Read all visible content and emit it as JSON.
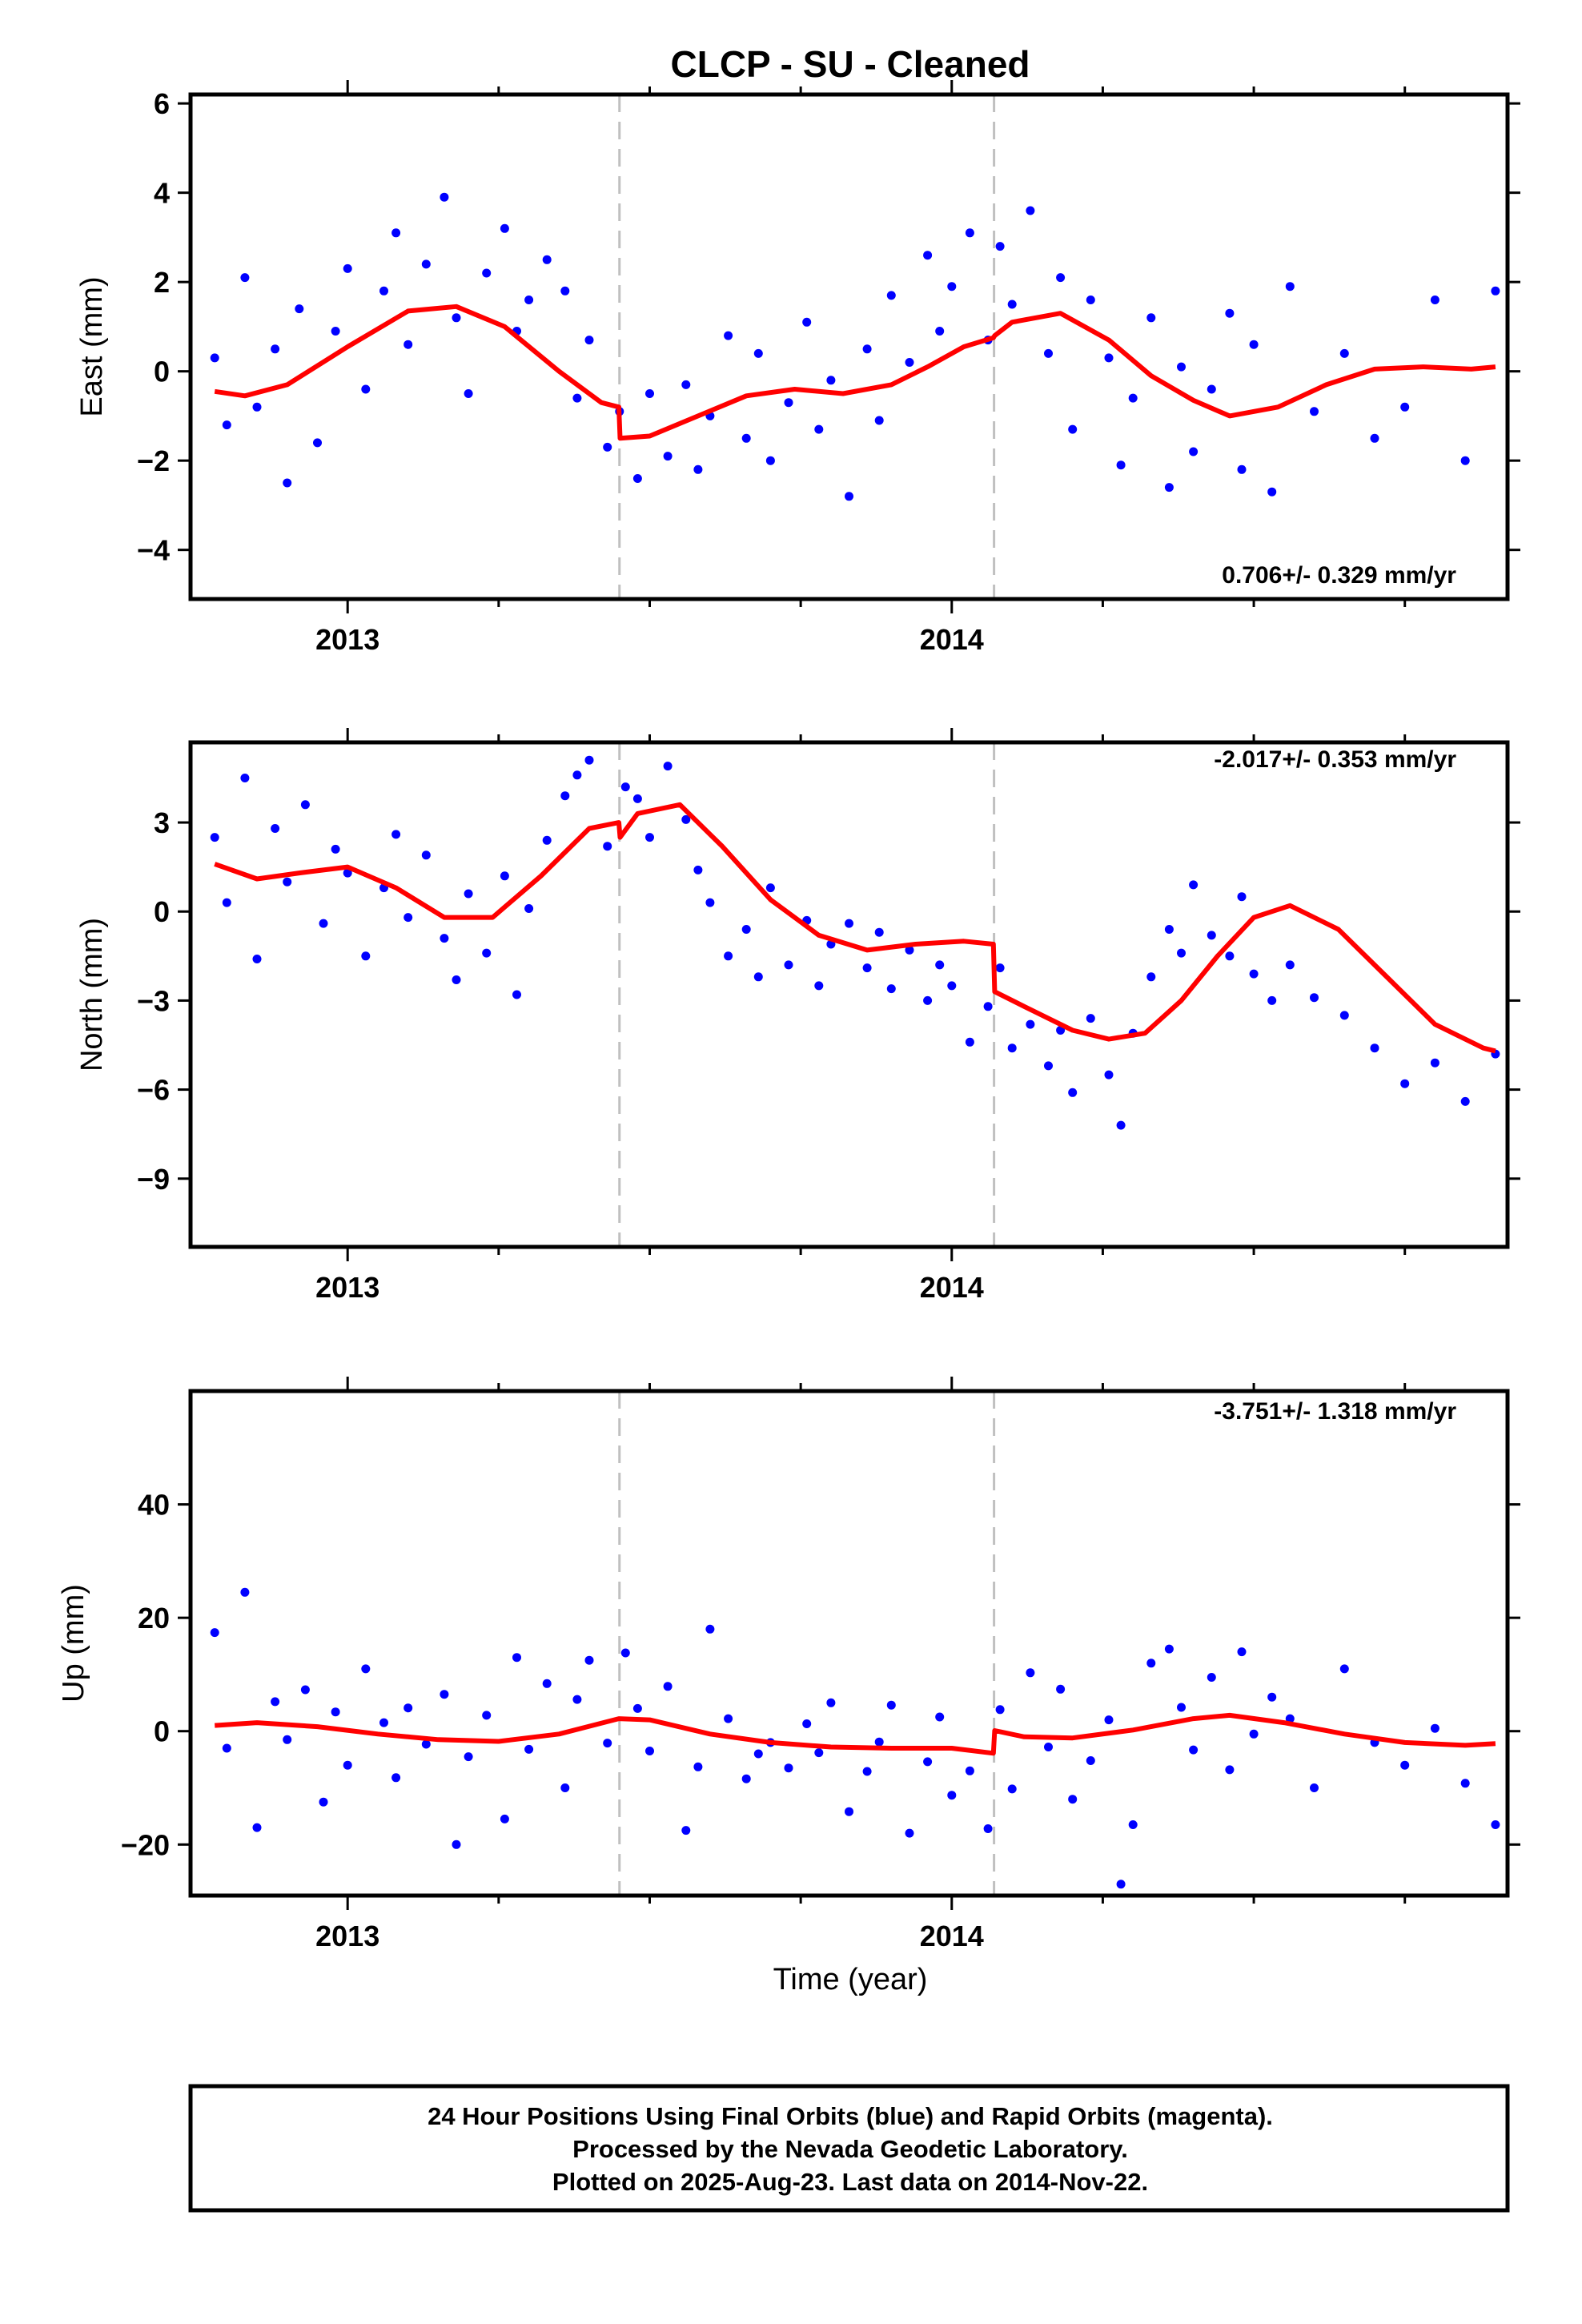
{
  "title": "CLCP  - SU - Cleaned",
  "xlabel": "Time (year)",
  "footer": {
    "line1": "24 Hour Positions Using Final Orbits (blue) and Rapid Orbits (magenta).",
    "line2": "Processed by the Nevada Geodetic Laboratory.",
    "line3": "Plotted on 2025-Aug-23. Last data on 2014-Nov-22."
  },
  "colors": {
    "points": "#0000ff",
    "fit": "#ff0000",
    "breaks": "#c0c0c0",
    "frame": "#000000"
  },
  "chart_data": [
    {
      "type": "scatter",
      "component": "east",
      "ylabel": "East (mm)",
      "rate": "0.706+/- 0.329 mm/yr",
      "xlim": [
        2012.74,
        2014.92
      ],
      "ylim": [
        -5.1,
        6.2
      ],
      "yticks": [
        -4,
        -2,
        0,
        2,
        4,
        6
      ],
      "yticklabels": [
        "−4",
        "−2",
        "0",
        "2",
        "4",
        "6"
      ],
      "xticks": [
        2013,
        2014
      ],
      "xticklabels": [
        "2013",
        "2014"
      ],
      "x_minor_ticks": [
        2013.25,
        2013.5,
        2013.75,
        2014.25,
        2014.5,
        2014.75
      ],
      "breaks": [
        2013.45,
        2014.07
      ],
      "grid": false,
      "series": [
        {
          "kind": "points",
          "x": [
            2012.78,
            2012.8,
            2012.83,
            2012.85,
            2012.88,
            2012.9,
            2012.92,
            2012.95,
            2012.98,
            2013.0,
            2013.03,
            2013.06,
            2013.08,
            2013.1,
            2013.13,
            2013.16,
            2013.18,
            2013.2,
            2013.23,
            2013.26,
            2013.28,
            2013.3,
            2013.33,
            2013.36,
            2013.38,
            2013.4,
            2013.43,
            2013.45,
            2013.48,
            2013.5,
            2013.53,
            2013.56,
            2013.58,
            2013.6,
            2013.63,
            2013.66,
            2013.68,
            2013.7,
            2013.73,
            2013.76,
            2013.78,
            2013.8,
            2013.83,
            2013.86,
            2013.88,
            2013.9,
            2013.93,
            2013.96,
            2013.98,
            2014.0,
            2014.03,
            2014.06,
            2014.08,
            2014.1,
            2014.13,
            2014.16,
            2014.18,
            2014.2,
            2014.23,
            2014.26,
            2014.28,
            2014.3,
            2014.33,
            2014.36,
            2014.38,
            2014.4,
            2014.43,
            2014.46,
            2014.48,
            2014.5,
            2014.53,
            2014.56,
            2014.6,
            2014.65,
            2014.7,
            2014.75,
            2014.8,
            2014.85,
            2014.9
          ],
          "y": [
            0.3,
            -1.2,
            2.1,
            -0.8,
            0.5,
            -2.5,
            1.4,
            -1.6,
            0.9,
            2.3,
            -0.4,
            1.8,
            3.1,
            0.6,
            2.4,
            3.9,
            1.2,
            -0.5,
            2.2,
            3.2,
            0.9,
            1.6,
            2.5,
            1.8,
            -0.6,
            0.7,
            -1.7,
            -0.9,
            -2.4,
            -0.5,
            -1.9,
            -0.3,
            -2.2,
            -1.0,
            0.8,
            -1.5,
            0.4,
            -2.0,
            -0.7,
            1.1,
            -1.3,
            -0.2,
            -2.8,
            0.5,
            -1.1,
            1.7,
            0.2,
            2.6,
            0.9,
            1.9,
            3.1,
            0.7,
            2.8,
            1.5,
            3.6,
            0.4,
            2.1,
            -1.3,
            1.6,
            0.3,
            -2.1,
            -0.6,
            1.2,
            -2.6,
            0.1,
            -1.8,
            -0.4,
            1.3,
            -2.2,
            0.6,
            -2.7,
            1.9,
            -0.9,
            0.4,
            -1.5,
            -0.8,
            1.6,
            -2.0,
            1.8
          ]
        },
        {
          "kind": "fit",
          "x": [
            2012.78,
            2012.83,
            2012.9,
            2013.0,
            2013.1,
            2013.18,
            2013.26,
            2013.35,
            2013.42,
            2013.449,
            2013.451,
            2013.5,
            2013.58,
            2013.66,
            2013.74,
            2013.82,
            2013.9,
            2013.96,
            2014.02,
            2014.069,
            2014.071,
            2014.1,
            2014.18,
            2014.26,
            2014.33,
            2014.4,
            2014.46,
            2014.54,
            2014.62,
            2014.7,
            2014.78,
            2014.86,
            2014.9
          ],
          "y": [
            -0.45,
            -0.55,
            -0.3,
            0.55,
            1.35,
            1.45,
            1.0,
            0.0,
            -0.7,
            -0.8,
            -1.5,
            -1.45,
            -1.0,
            -0.55,
            -0.4,
            -0.5,
            -0.3,
            0.1,
            0.55,
            0.75,
            0.8,
            1.1,
            1.3,
            0.7,
            -0.1,
            -0.65,
            -1.0,
            -0.8,
            -0.3,
            0.05,
            0.1,
            0.05,
            0.1
          ]
        }
      ]
    },
    {
      "type": "scatter",
      "component": "north",
      "ylabel": "North (mm)",
      "rate": "-2.017+/- 0.353 mm/yr",
      "xlim": [
        2012.74,
        2014.92
      ],
      "ylim": [
        -11.3,
        5.7
      ],
      "yticks": [
        -9,
        -6,
        -3,
        0,
        3
      ],
      "yticklabels": [
        "−9",
        "−6",
        "−3",
        "0",
        "3"
      ],
      "xticks": [
        2013,
        2014
      ],
      "xticklabels": [
        "2013",
        "2014"
      ],
      "x_minor_ticks": [
        2013.25,
        2013.5,
        2013.75,
        2014.25,
        2014.5,
        2014.75
      ],
      "breaks": [
        2013.45,
        2014.07
      ],
      "grid": false,
      "series": [
        {
          "kind": "points",
          "x": [
            2012.78,
            2012.8,
            2012.83,
            2012.85,
            2012.88,
            2012.9,
            2012.93,
            2012.96,
            2012.98,
            2013.0,
            2013.03,
            2013.06,
            2013.08,
            2013.1,
            2013.13,
            2013.16,
            2013.18,
            2013.2,
            2013.23,
            2013.26,
            2013.28,
            2013.3,
            2013.33,
            2013.36,
            2013.38,
            2013.4,
            2013.43,
            2013.46,
            2013.48,
            2013.5,
            2013.53,
            2013.56,
            2013.58,
            2013.6,
            2013.63,
            2013.66,
            2013.68,
            2013.7,
            2013.73,
            2013.76,
            2013.78,
            2013.8,
            2013.83,
            2013.86,
            2013.88,
            2013.9,
            2013.93,
            2013.96,
            2013.98,
            2014.0,
            2014.03,
            2014.06,
            2014.08,
            2014.1,
            2014.13,
            2014.16,
            2014.18,
            2014.2,
            2014.23,
            2014.26,
            2014.28,
            2014.3,
            2014.33,
            2014.36,
            2014.38,
            2014.4,
            2014.43,
            2014.46,
            2014.48,
            2014.5,
            2014.53,
            2014.56,
            2014.6,
            2014.65,
            2014.7,
            2014.75,
            2014.8,
            2014.85,
            2014.9
          ],
          "y": [
            2.5,
            0.3,
            4.5,
            -1.6,
            2.8,
            1.0,
            3.6,
            -0.4,
            2.1,
            1.3,
            -1.5,
            0.8,
            2.6,
            -0.2,
            1.9,
            -0.9,
            -2.3,
            0.6,
            -1.4,
            1.2,
            -2.8,
            0.1,
            2.4,
            3.9,
            4.6,
            5.1,
            2.2,
            4.2,
            3.8,
            2.5,
            4.9,
            3.1,
            1.4,
            0.3,
            -1.5,
            -0.6,
            -2.2,
            0.8,
            -1.8,
            -0.3,
            -2.5,
            -1.1,
            -0.4,
            -1.9,
            -0.7,
            -2.6,
            -1.3,
            -3.0,
            -1.8,
            -2.5,
            -4.4,
            -3.2,
            -1.9,
            -4.6,
            -3.8,
            -5.2,
            -4.0,
            -6.1,
            -3.6,
            -5.5,
            -7.2,
            -4.1,
            -2.2,
            -0.6,
            -1.4,
            0.9,
            -0.8,
            -1.5,
            0.5,
            -2.1,
            -3.0,
            -1.8,
            -2.9,
            -3.5,
            -4.6,
            -5.8,
            -5.1,
            -6.4,
            -4.8
          ]
        },
        {
          "kind": "fit",
          "x": [
            2012.78,
            2012.85,
            2012.92,
            2013.0,
            2013.08,
            2013.16,
            2013.24,
            2013.32,
            2013.4,
            2013.449,
            2013.451,
            2013.48,
            2013.55,
            2013.62,
            2013.7,
            2013.78,
            2013.86,
            2013.94,
            2014.02,
            2014.069,
            2014.071,
            2014.12,
            2014.2,
            2014.26,
            2014.32,
            2014.38,
            2014.44,
            2014.5,
            2014.56,
            2014.64,
            2014.72,
            2014.8,
            2014.88,
            2014.9
          ],
          "y": [
            1.6,
            1.1,
            1.3,
            1.5,
            0.8,
            -0.2,
            -0.2,
            1.2,
            2.8,
            3.0,
            2.5,
            3.3,
            3.6,
            2.2,
            0.4,
            -0.8,
            -1.3,
            -1.1,
            -1.0,
            -1.1,
            -2.7,
            -3.2,
            -4.0,
            -4.3,
            -4.1,
            -3.0,
            -1.5,
            -0.2,
            0.2,
            -0.6,
            -2.2,
            -3.8,
            -4.6,
            -4.7
          ]
        }
      ]
    },
    {
      "type": "scatter",
      "component": "up",
      "ylabel": "Up (mm)",
      "rate": "-3.751+/- 1.318 mm/yr",
      "xlim": [
        2012.74,
        2014.92
      ],
      "ylim": [
        -29,
        60
      ],
      "yticks": [
        -20,
        0,
        20,
        40
      ],
      "yticklabels": [
        "−20",
        "0",
        "20",
        "40"
      ],
      "xticks": [
        2013,
        2014
      ],
      "xticklabels": [
        "2013",
        "2014"
      ],
      "x_minor_ticks": [
        2013.25,
        2013.5,
        2013.75,
        2014.25,
        2014.5,
        2014.75
      ],
      "breaks": [
        2013.45,
        2014.07
      ],
      "grid": false,
      "series": [
        {
          "kind": "points",
          "x": [
            2012.78,
            2012.8,
            2012.83,
            2012.85,
            2012.88,
            2012.9,
            2012.93,
            2012.96,
            2012.98,
            2013.0,
            2013.03,
            2013.06,
            2013.08,
            2013.1,
            2013.13,
            2013.16,
            2013.18,
            2013.2,
            2013.23,
            2013.26,
            2013.28,
            2013.3,
            2013.33,
            2013.36,
            2013.38,
            2013.4,
            2013.43,
            2013.46,
            2013.48,
            2013.5,
            2013.53,
            2013.56,
            2013.58,
            2013.6,
            2013.63,
            2013.66,
            2013.68,
            2013.7,
            2013.73,
            2013.76,
            2013.78,
            2013.8,
            2013.83,
            2013.86,
            2013.88,
            2013.9,
            2013.93,
            2013.96,
            2013.98,
            2014.0,
            2014.03,
            2014.06,
            2014.08,
            2014.1,
            2014.13,
            2014.16,
            2014.18,
            2014.2,
            2014.23,
            2014.26,
            2014.28,
            2014.3,
            2014.33,
            2014.36,
            2014.38,
            2014.4,
            2014.43,
            2014.46,
            2014.48,
            2014.5,
            2014.53,
            2014.56,
            2014.6,
            2014.65,
            2014.7,
            2014.75,
            2014.8,
            2014.85,
            2014.9
          ],
          "y": [
            17.4,
            -3.0,
            24.5,
            -17.0,
            5.2,
            -1.5,
            7.3,
            -12.5,
            3.4,
            -6.0,
            11.0,
            1.5,
            -8.2,
            4.1,
            -2.3,
            6.5,
            -20.0,
            -4.5,
            2.8,
            -15.5,
            13.0,
            -3.2,
            8.4,
            -10.0,
            5.6,
            12.5,
            -2.1,
            13.8,
            4.0,
            -3.5,
            7.9,
            -17.5,
            -6.3,
            18.0,
            2.2,
            -8.4,
            -4.0,
            -2.0,
            -6.5,
            1.3,
            -3.8,
            5.0,
            -14.2,
            -7.1,
            -1.9,
            4.6,
            -18.0,
            -5.4,
            2.5,
            -11.3,
            -7.0,
            -17.2,
            3.8,
            -10.2,
            10.3,
            -2.8,
            7.4,
            -12.0,
            -5.2,
            2.0,
            -27.0,
            -16.5,
            12.0,
            14.5,
            4.2,
            -3.3,
            9.5,
            -6.8,
            14.0,
            -0.5,
            6.0,
            2.2,
            -10.0,
            11.0,
            -2.0,
            -6.0,
            0.5,
            -9.2,
            -16.5
          ]
        },
        {
          "kind": "fit",
          "x": [
            2012.78,
            2012.85,
            2012.95,
            2013.05,
            2013.15,
            2013.25,
            2013.35,
            2013.449,
            2013.5,
            2013.6,
            2013.7,
            2013.8,
            2013.9,
            2014.0,
            2014.069,
            2014.071,
            2014.12,
            2014.2,
            2014.3,
            2014.4,
            2014.46,
            2014.55,
            2014.65,
            2014.75,
            2014.85,
            2014.9
          ],
          "y": [
            1.0,
            1.5,
            0.8,
            -0.5,
            -1.5,
            -1.8,
            -0.5,
            2.2,
            2.0,
            -0.5,
            -2.0,
            -2.8,
            -3.0,
            -3.0,
            -3.9,
            0.1,
            -1.0,
            -1.2,
            0.2,
            2.2,
            2.8,
            1.5,
            -0.5,
            -2.0,
            -2.5,
            -2.2
          ]
        }
      ]
    }
  ]
}
